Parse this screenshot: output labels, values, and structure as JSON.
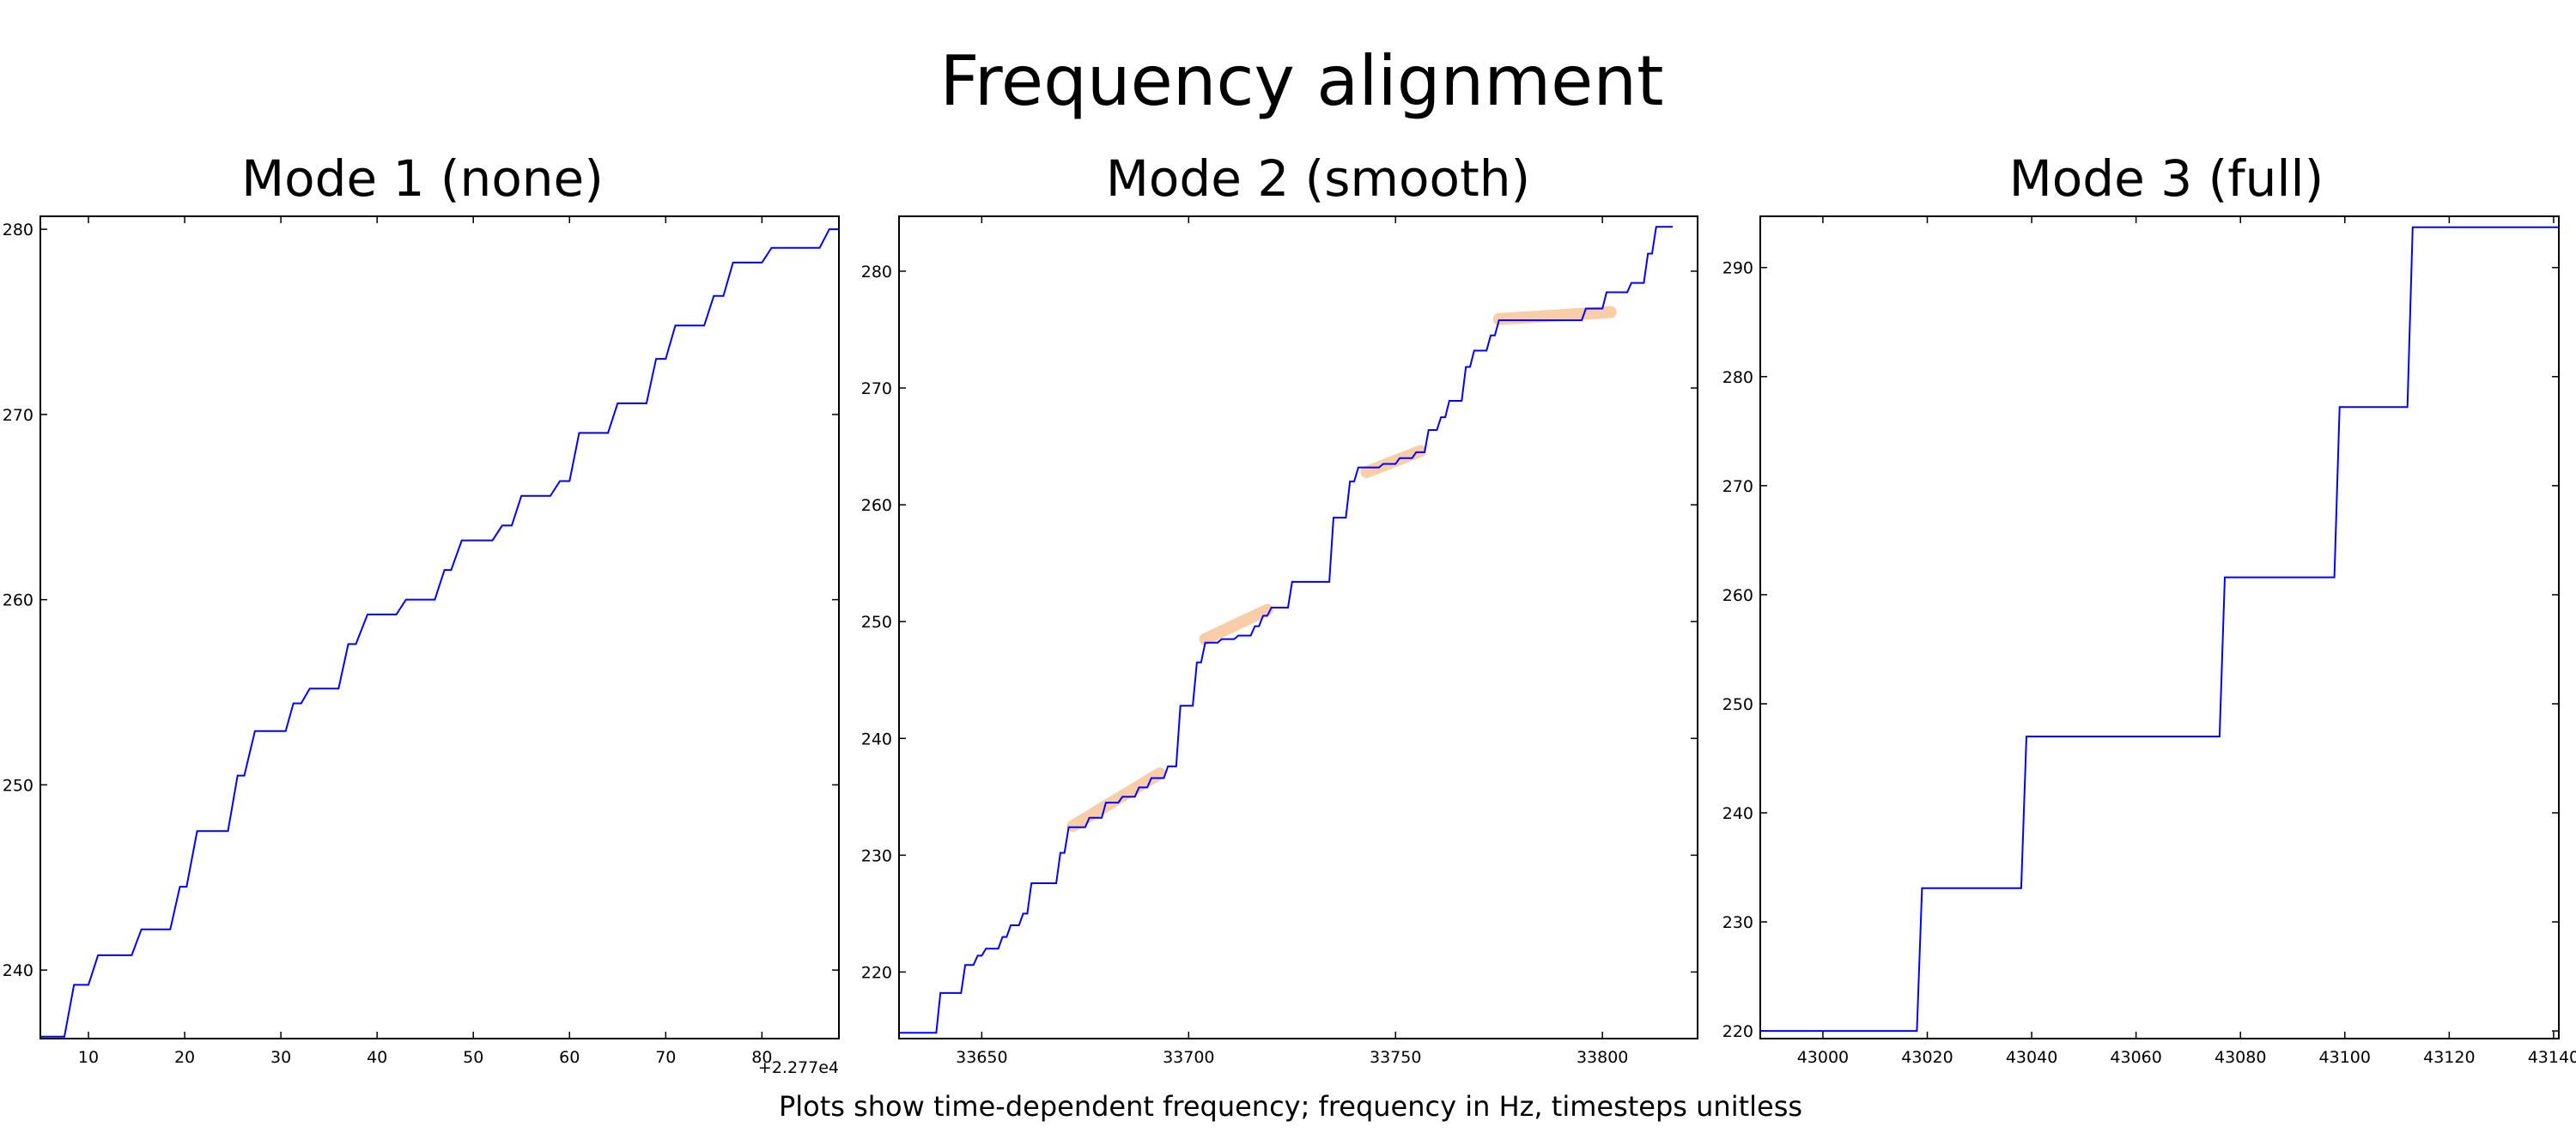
{
  "figure": {
    "title": "Frequency alignment",
    "caption": "Plots show time-dependent frequency; frequency in Hz, timesteps unitless",
    "line_color": "#0000ff",
    "highlight_color": "#f4a460"
  },
  "chart_data": [
    {
      "type": "line",
      "title": "Mode 1 (none)",
      "xlabel": "",
      "ylabel": "",
      "x_offset_label": "+2.277e4",
      "xlim": [
        5,
        88
      ],
      "ylim": [
        236.3,
        280.7
      ],
      "xticks": [
        10,
        20,
        30,
        40,
        50,
        60,
        70,
        80
      ],
      "yticks": [
        240,
        250,
        260,
        270,
        280
      ],
      "series": [
        {
          "values": [
            [
              5,
              236.4
            ],
            [
              7.5,
              236.4
            ],
            [
              8.5,
              239.2
            ],
            [
              10,
              239.2
            ],
            [
              11,
              240.8
            ],
            [
              14.5,
              240.8
            ],
            [
              15.5,
              242.2
            ],
            [
              18.5,
              242.2
            ],
            [
              19.5,
              244.5
            ],
            [
              20.2,
              244.5
            ],
            [
              21.3,
              247.5
            ],
            [
              24.5,
              247.5
            ],
            [
              25.5,
              250.5
            ],
            [
              26.2,
              250.5
            ],
            [
              27.3,
              252.9
            ],
            [
              30.5,
              252.9
            ],
            [
              31.3,
              254.4
            ],
            [
              32.1,
              254.4
            ],
            [
              33,
              255.2
            ],
            [
              36,
              255.2
            ],
            [
              37,
              257.6
            ],
            [
              37.8,
              257.6
            ],
            [
              39,
              259.2
            ],
            [
              42,
              259.2
            ],
            [
              43,
              260
            ],
            [
              46,
              260
            ],
            [
              47,
              261.6
            ],
            [
              47.7,
              261.6
            ],
            [
              48.8,
              263.2
            ],
            [
              52,
              263.2
            ],
            [
              53,
              264
            ],
            [
              54,
              264
            ],
            [
              55,
              265.6
            ],
            [
              58,
              265.6
            ],
            [
              59,
              266.4
            ],
            [
              60,
              266.4
            ],
            [
              61,
              269
            ],
            [
              64,
              269
            ],
            [
              65,
              270.6
            ],
            [
              68,
              270.6
            ],
            [
              69,
              273
            ],
            [
              70,
              273
            ],
            [
              71,
              274.8
            ],
            [
              74,
              274.8
            ],
            [
              75,
              276.4
            ],
            [
              76,
              276.4
            ],
            [
              77,
              278.2
            ],
            [
              80,
              278.2
            ],
            [
              81,
              279
            ],
            [
              86,
              279
            ],
            [
              87,
              280
            ],
            [
              88,
              280
            ]
          ]
        }
      ]
    },
    {
      "type": "line",
      "title": "Mode 2 (smooth)",
      "xlabel": "",
      "ylabel": "",
      "xlim": [
        33630,
        33823
      ],
      "ylim": [
        214.3,
        284.7
      ],
      "xticks": [
        33650,
        33700,
        33750,
        33800
      ],
      "yticks": [
        220,
        230,
        240,
        250,
        260,
        270,
        280
      ],
      "series": [
        {
          "values": [
            [
              33630,
              214.8
            ],
            [
              33639,
              214.8
            ],
            [
              33640,
              218.2
            ],
            [
              33645,
              218.2
            ],
            [
              33646,
              220.6
            ],
            [
              33648,
              220.6
            ],
            [
              33649,
              221.4
            ],
            [
              33650,
              221.4
            ],
            [
              33651,
              222
            ],
            [
              33654,
              222
            ],
            [
              33655,
              223
            ],
            [
              33656,
              223
            ],
            [
              33657,
              224
            ],
            [
              33659,
              224
            ],
            [
              33660,
              225
            ],
            [
              33661,
              225
            ],
            [
              33662,
              227.6
            ],
            [
              33668,
              227.6
            ],
            [
              33669,
              230.2
            ],
            [
              33670,
              230.2
            ],
            [
              33671,
              232.4
            ],
            [
              33675,
              232.4
            ],
            [
              33676,
              233.2
            ],
            [
              33679,
              233.2
            ],
            [
              33680,
              234.5
            ],
            [
              33683,
              234.5
            ],
            [
              33684,
              235
            ],
            [
              33687,
              235
            ],
            [
              33688,
              235.8
            ],
            [
              33690,
              235.8
            ],
            [
              33691,
              236.6
            ],
            [
              33694,
              236.6
            ],
            [
              33695,
              237.6
            ],
            [
              33697,
              237.6
            ],
            [
              33698,
              242.8
            ],
            [
              33701,
              242.8
            ],
            [
              33702,
              246.5
            ],
            [
              33703,
              246.5
            ],
            [
              33704,
              248.2
            ],
            [
              33707,
              248.2
            ],
            [
              33708,
              248.5
            ],
            [
              33711,
              248.5
            ],
            [
              33712,
              248.8
            ],
            [
              33715,
              248.8
            ],
            [
              33716,
              249.6
            ],
            [
              33717,
              249.6
            ],
            [
              33718,
              250.5
            ],
            [
              33719,
              250.5
            ],
            [
              33720,
              251.2
            ],
            [
              33724,
              251.2
            ],
            [
              33725,
              253.4
            ],
            [
              33734,
              253.4
            ],
            [
              33735,
              258.9
            ],
            [
              33738,
              258.9
            ],
            [
              33739,
              262
            ],
            [
              33740,
              262
            ],
            [
              33741,
              263.2
            ],
            [
              33746,
              263.2
            ],
            [
              33747,
              263.5
            ],
            [
              33750,
              263.5
            ],
            [
              33751,
              264
            ],
            [
              33754,
              264
            ],
            [
              33755,
              264.5
            ],
            [
              33757,
              264.5
            ],
            [
              33758,
              266.4
            ],
            [
              33760,
              266.4
            ],
            [
              33761,
              267.5
            ],
            [
              33762,
              267.5
            ],
            [
              33763,
              268.9
            ],
            [
              33766,
              268.9
            ],
            [
              33767,
              271.8
            ],
            [
              33768,
              271.8
            ],
            [
              33769,
              273.2
            ],
            [
              33772,
              273.2
            ],
            [
              33773,
              274.5
            ],
            [
              33774,
              274.5
            ],
            [
              33775,
              275.8
            ],
            [
              33795,
              275.8
            ],
            [
              33796,
              276.8
            ],
            [
              33800,
              276.8
            ],
            [
              33801,
              278.2
            ],
            [
              33806,
              278.2
            ],
            [
              33807,
              279
            ],
            [
              33810,
              279
            ],
            [
              33811,
              281.5
            ],
            [
              33812,
              281.5
            ],
            [
              33813,
              283.8
            ],
            [
              33817,
              283.8
            ]
          ]
        }
      ],
      "highlights": [
        [
          [
            33672,
            232.5
          ],
          [
            33693,
            237
          ]
        ],
        [
          [
            33704,
            248.5
          ],
          [
            33719,
            251
          ]
        ],
        [
          [
            33743,
            262.8
          ],
          [
            33756,
            264.6
          ]
        ],
        [
          [
            33775,
            275.9
          ],
          [
            33802,
            276.5
          ]
        ]
      ]
    },
    {
      "type": "line",
      "title": "Mode 3 (full)",
      "xlabel": "",
      "ylabel": "",
      "xlim": [
        42988,
        43141
      ],
      "ylim": [
        219.3,
        294.7
      ],
      "xticks": [
        43000,
        43020,
        43040,
        43060,
        43080,
        43100,
        43120,
        43140
      ],
      "yticks": [
        220,
        230,
        240,
        250,
        260,
        270,
        280,
        290
      ],
      "series": [
        {
          "values": [
            [
              42988,
              220
            ],
            [
              43018,
              220
            ],
            [
              43019,
              233.1
            ],
            [
              43038,
              233.1
            ],
            [
              43039,
              247
            ],
            [
              43076,
              247
            ],
            [
              43077,
              261.6
            ],
            [
              43098,
              261.6
            ],
            [
              43099,
              277.2
            ],
            [
              43112,
              277.2
            ],
            [
              43113,
              293.7
            ],
            [
              43141,
              293.7
            ]
          ]
        }
      ]
    }
  ]
}
